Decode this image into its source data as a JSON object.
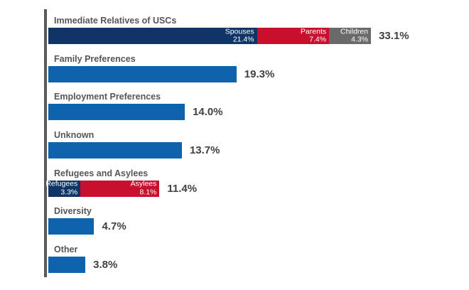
{
  "colors": {
    "background": "#ffffff",
    "navy": "#0e3566",
    "blue": "#0f63ac",
    "red": "#c8102e",
    "gray": "#6a6a6a",
    "axis_line": "#58595b",
    "category_label": "#55565a",
    "value_label": "#414042",
    "bar_inner_text": "#ffffff"
  },
  "chart_data": {
    "type": "bar",
    "orientation": "horizontal",
    "value_unit": "%",
    "title": "",
    "xlabel": "",
    "ylabel": "",
    "axis": {
      "x_min": 0,
      "x_max": 33.1,
      "gridlines": false,
      "legend": "none",
      "value_labels": "outside-right",
      "segment_labels": "inside-right"
    },
    "rows": [
      {
        "label": "Immediate Relatives of USCs",
        "total_value": 33.1,
        "total_display": "33.1%",
        "segments": [
          {
            "name": "Spouses",
            "value": 21.4,
            "display": "21.4%",
            "color_key": "navy"
          },
          {
            "name": "Parents",
            "value": 7.4,
            "display": "7.4%",
            "color_key": "red"
          },
          {
            "name": "Children",
            "value": 4.3,
            "display": "4.3%",
            "color_key": "gray"
          }
        ]
      },
      {
        "label": "Family Preferences",
        "total_value": 19.3,
        "total_display": "19.3%",
        "segments": [
          {
            "name": "",
            "value": 19.3,
            "display": "",
            "color_key": "blue"
          }
        ]
      },
      {
        "label": "Employment Preferences",
        "total_value": 14.0,
        "total_display": "14.0%",
        "segments": [
          {
            "name": "",
            "value": 14.0,
            "display": "",
            "color_key": "blue"
          }
        ]
      },
      {
        "label": "Unknown",
        "total_value": 13.7,
        "total_display": "13.7%",
        "segments": [
          {
            "name": "",
            "value": 13.7,
            "display": "",
            "color_key": "blue"
          }
        ]
      },
      {
        "label": "Refugees and Asylees",
        "total_value": 11.4,
        "total_display": "11.4%",
        "segments": [
          {
            "name": "Refugees",
            "value": 3.3,
            "display": "3.3%",
            "color_key": "navy"
          },
          {
            "name": "Asylees",
            "value": 8.1,
            "display": "8.1%",
            "color_key": "red"
          }
        ]
      },
      {
        "label": "Diversity",
        "total_value": 4.7,
        "total_display": "4.7%",
        "segments": [
          {
            "name": "",
            "value": 4.7,
            "display": "",
            "color_key": "blue"
          }
        ]
      },
      {
        "label": "Other",
        "total_value": 3.8,
        "total_display": "3.8%",
        "segments": [
          {
            "name": "",
            "value": 3.8,
            "display": "",
            "color_key": "blue"
          }
        ]
      }
    ]
  }
}
